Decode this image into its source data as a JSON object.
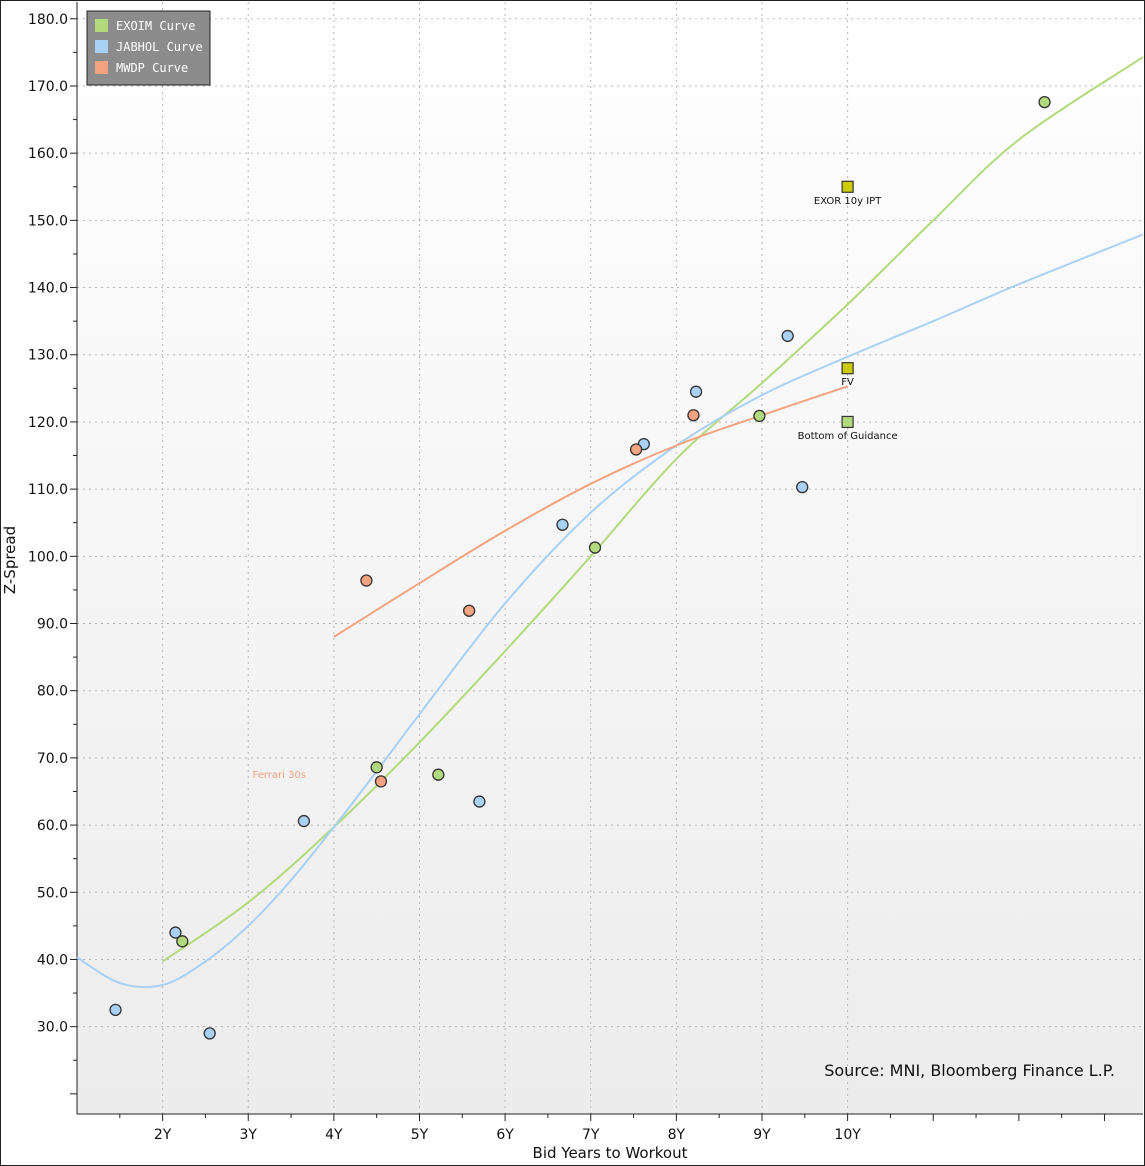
{
  "chart_data": {
    "type": "scatter",
    "xlabel": "Bid Years to Workout",
    "ylabel": "Z-Spread",
    "xlim": [
      1.0,
      13.45
    ],
    "ylim": [
      17.0,
      182.5
    ],
    "xticks": [
      2,
      3,
      4,
      5,
      6,
      7,
      8,
      9,
      10
    ],
    "xtick_labels": [
      "2Y",
      "3Y",
      "4Y",
      "5Y",
      "6Y",
      "7Y",
      "8Y",
      "9Y",
      "10Y"
    ],
    "yticks": [
      30,
      40,
      50,
      60,
      70,
      80,
      90,
      100,
      110,
      120,
      130,
      140,
      150,
      160,
      170,
      180
    ],
    "ytick_labels": [
      "30.0",
      "40.0",
      "50.0",
      "60.0",
      "70.0",
      "80.0",
      "90.0",
      "100.0",
      "110.0",
      "120.0",
      "130.0",
      "140.0",
      "150.0",
      "160.0",
      "170.0",
      "180.0"
    ],
    "grid": true,
    "legend_position": "top-left",
    "source": "Source: MNI, Bloomberg Finance L.P.",
    "series": [
      {
        "name": "EXOIM Curve",
        "color": "#b3d97d",
        "points": [
          [
            2.23,
            42.7
          ],
          [
            4.5,
            68.6
          ],
          [
            5.22,
            67.5
          ],
          [
            7.05,
            101.3
          ],
          [
            8.97,
            120.9
          ],
          [
            12.3,
            167.6
          ]
        ],
        "curve": [
          [
            2.0,
            39.7
          ],
          [
            3.0,
            48.5
          ],
          [
            4.0,
            59.7
          ],
          [
            5.0,
            72.3
          ],
          [
            6.0,
            85.9
          ],
          [
            7.0,
            100.0
          ],
          [
            8.0,
            114.5
          ],
          [
            9.0,
            125.8
          ],
          [
            10.0,
            137.5
          ],
          [
            11.0,
            150.0
          ],
          [
            12.0,
            162.0
          ],
          [
            13.45,
            174.3
          ]
        ]
      },
      {
        "name": "JABHOL Curve",
        "color": "#a9d0f5",
        "points": [
          [
            1.45,
            32.5
          ],
          [
            2.15,
            44.0
          ],
          [
            2.55,
            29.0
          ],
          [
            3.65,
            60.6
          ],
          [
            5.7,
            63.5
          ],
          [
            6.67,
            104.7
          ],
          [
            7.62,
            116.7
          ],
          [
            8.23,
            124.5
          ],
          [
            9.3,
            132.8
          ],
          [
            9.47,
            110.3
          ]
        ],
        "curve": [
          [
            1.0,
            40.3
          ],
          [
            1.5,
            36.5
          ],
          [
            2.0,
            36.2
          ],
          [
            2.5,
            39.7
          ],
          [
            3.0,
            45.0
          ],
          [
            3.5,
            51.8
          ],
          [
            4.0,
            59.7
          ],
          [
            4.5,
            68.0
          ],
          [
            5.0,
            76.5
          ],
          [
            6.0,
            93.0
          ],
          [
            7.0,
            106.5
          ],
          [
            8.0,
            116.5
          ],
          [
            9.0,
            124.0
          ],
          [
            10.0,
            129.7
          ],
          [
            11.0,
            135.0
          ],
          [
            12.0,
            140.5
          ],
          [
            13.45,
            147.9
          ]
        ]
      },
      {
        "name": "MWDP Curve",
        "color": "#f4a380",
        "points": [
          [
            4.38,
            96.4
          ],
          [
            4.55,
            66.5
          ],
          [
            5.58,
            91.9
          ],
          [
            7.53,
            115.9
          ],
          [
            8.2,
            121.0
          ]
        ],
        "curve": [
          [
            4.0,
            88.0
          ],
          [
            5.0,
            96.0
          ],
          [
            6.0,
            103.8
          ],
          [
            7.0,
            110.8
          ],
          [
            8.0,
            116.5
          ],
          [
            9.0,
            121.0
          ],
          [
            10.0,
            125.3
          ]
        ]
      }
    ],
    "markers": [
      {
        "label": "EXOR 10y IPT",
        "x": 10.0,
        "y": 155.0,
        "color": "#cccc00"
      },
      {
        "label": "FV",
        "x": 10.0,
        "y": 128.0,
        "color": "#cccc00"
      },
      {
        "label": "Bottom of Guidance",
        "x": 10.0,
        "y": 120.0,
        "color": "#b3d97d"
      }
    ],
    "annotations": [
      {
        "text": "Ferrari 30s",
        "x": 3.05,
        "y": 67.0,
        "color": "#f4a380"
      }
    ]
  }
}
